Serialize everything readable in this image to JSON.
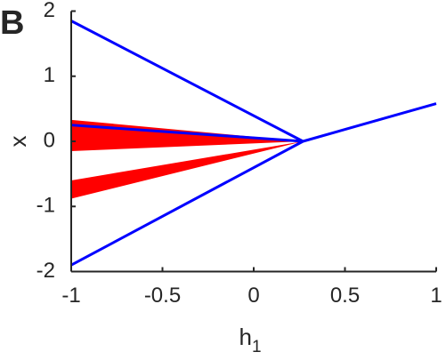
{
  "chart_data": {
    "type": "line",
    "panel_label": "B",
    "xlabel": "h",
    "xlabel_subscript": "1",
    "ylabel": "x",
    "xlim": [
      -1,
      1
    ],
    "ylim": [
      -2,
      2
    ],
    "xticks": [
      -1,
      -0.5,
      0,
      0.5,
      1
    ],
    "yticks": [
      -2,
      -1,
      0,
      1,
      2
    ],
    "bands": [
      {
        "color": "#ff0000",
        "x": [
          -1,
          0.27
        ],
        "lower": [
          -0.15,
          0
        ],
        "upper": [
          0.33,
          0
        ]
      },
      {
        "color": "#ff0000",
        "x": [
          -1,
          0.27
        ],
        "lower": [
          -0.88,
          0
        ],
        "upper": [
          -0.6,
          0
        ]
      }
    ],
    "series": [
      {
        "color": "#0000ff",
        "x": [
          -1,
          0.27
        ],
        "values": [
          1.85,
          0
        ]
      },
      {
        "color": "#0000ff",
        "x": [
          -1,
          0.27
        ],
        "values": [
          -1.9,
          0
        ]
      },
      {
        "color": "#0000ff",
        "x": [
          -1,
          0.27
        ],
        "values": [
          0.25,
          0
        ]
      },
      {
        "color": "#0000ff",
        "x": [
          0.27,
          1
        ],
        "values": [
          0,
          0.58
        ]
      }
    ]
  }
}
